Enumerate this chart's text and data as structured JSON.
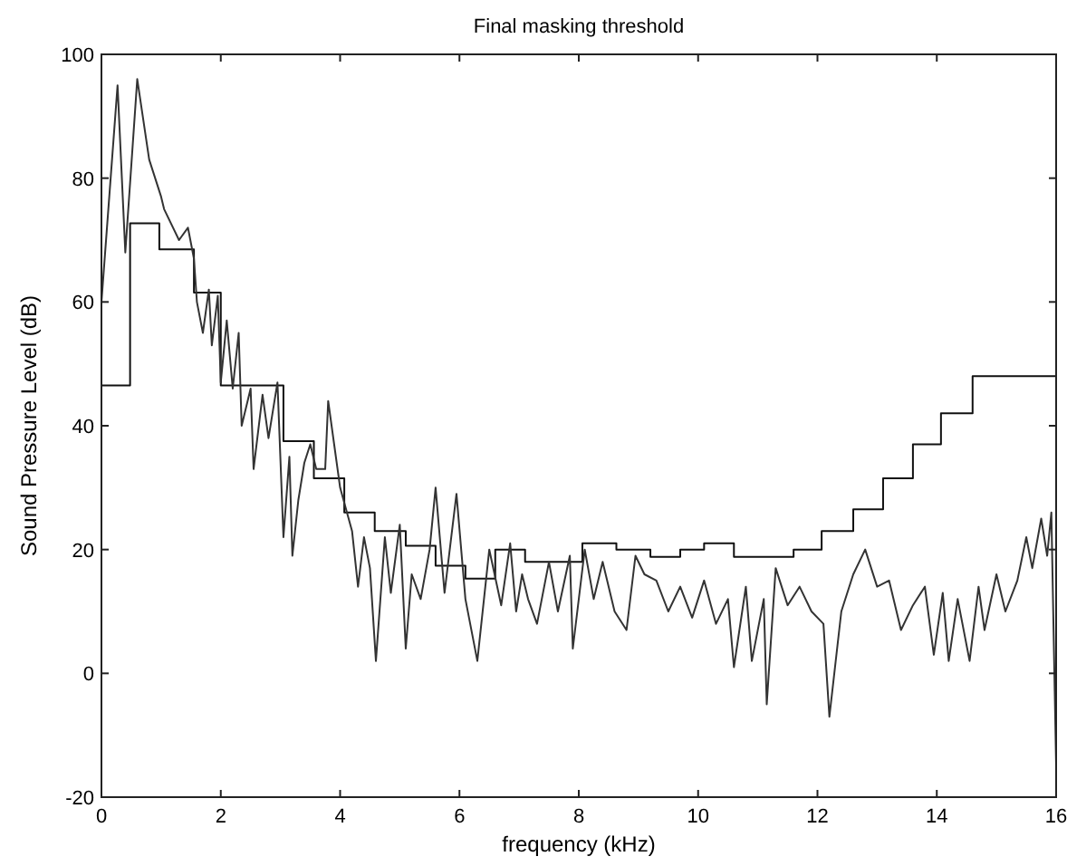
{
  "chart_data": {
    "type": "line",
    "title": "Final masking threshold",
    "xlabel": "frequency (kHz)",
    "ylabel": "Sound Pressure Level (dB)",
    "xlim": [
      0,
      16
    ],
    "ylim": [
      -20,
      100
    ],
    "xticks": [
      0,
      2,
      4,
      6,
      8,
      10,
      12,
      14,
      16
    ],
    "yticks": [
      -20,
      0,
      20,
      40,
      60,
      80,
      100
    ],
    "grid": false,
    "series": [
      {
        "type": "step",
        "color": "#111111",
        "x": [
          0,
          0.48,
          0.97,
          1.55,
          2.0,
          3.05,
          3.56,
          4.07,
          4.58,
          5.1,
          5.6,
          6.1,
          6.6,
          7.1,
          8.06,
          8.63,
          9.2,
          9.7,
          10.1,
          10.6,
          11.6,
          12.07,
          12.6,
          13.1,
          13.6,
          14.07,
          14.6,
          16
        ],
        "values": [
          46.5,
          72.7,
          68.5,
          61.5,
          46.5,
          37.5,
          31.5,
          26,
          23,
          20.6,
          17.4,
          15.3,
          20,
          18,
          21,
          20,
          18.8,
          20,
          21,
          18.8,
          20,
          23,
          26.5,
          31.5,
          37,
          42,
          48,
          48
        ]
      },
      {
        "type": "line",
        "color": "#333333",
        "x": [
          0,
          0.27,
          0.4,
          0.6,
          0.8,
          1.0,
          1.05,
          1.3,
          1.45,
          1.55,
          1.6,
          1.7,
          1.8,
          1.85,
          1.95,
          2.0,
          2.1,
          2.2,
          2.3,
          2.35,
          2.5,
          2.55,
          2.7,
          2.8,
          2.95,
          3.05,
          3.15,
          3.2,
          3.3,
          3.4,
          3.5,
          3.6,
          3.75,
          3.8,
          3.9,
          4.0,
          4.2,
          4.3,
          4.4,
          4.5,
          4.6,
          4.75,
          4.85,
          5.0,
          5.1,
          5.2,
          5.35,
          5.5,
          5.6,
          5.75,
          5.95,
          6.1,
          6.3,
          6.5,
          6.7,
          6.85,
          6.95,
          7.05,
          7.15,
          7.3,
          7.5,
          7.65,
          7.85,
          7.9,
          8.1,
          8.25,
          8.4,
          8.6,
          8.8,
          8.95,
          9.1,
          9.3,
          9.5,
          9.7,
          9.9,
          10.1,
          10.3,
          10.5,
          10.6,
          10.8,
          10.9,
          11.1,
          11.15,
          11.3,
          11.5,
          11.7,
          11.9,
          12.1,
          12.2,
          12.4,
          12.6,
          12.8,
          13.0,
          13.2,
          13.4,
          13.6,
          13.8,
          13.95,
          14.1,
          14.2,
          14.35,
          14.55,
          14.7,
          14.8,
          15.0,
          15.15,
          15.35,
          15.5,
          15.6,
          15.75,
          15.85,
          15.92,
          16.0
        ],
        "values": [
          60,
          95,
          68,
          96,
          83,
          77,
          75,
          70,
          72,
          67,
          60,
          55,
          62,
          53,
          61,
          47,
          57,
          46,
          55,
          40,
          46,
          33,
          45,
          38,
          47,
          22,
          35,
          19,
          28,
          34,
          37,
          33,
          33,
          44,
          37,
          30,
          23,
          14,
          22,
          17,
          2,
          22,
          13,
          24,
          4,
          16,
          12,
          20,
          30,
          13,
          29,
          12,
          2,
          20,
          11,
          21,
          10,
          16,
          12,
          8,
          18,
          10,
          19,
          4,
          20,
          12,
          18,
          10,
          7,
          19,
          16,
          15,
          10,
          14,
          9,
          15,
          8,
          12,
          1,
          14,
          2,
          12,
          -5,
          17,
          11,
          14,
          10,
          8,
          -7,
          10,
          16,
          20,
          14,
          15,
          7,
          11,
          14,
          3,
          13,
          2,
          12,
          2,
          14,
          7,
          16,
          10,
          15,
          22,
          17,
          25,
          19,
          26,
          -15
        ]
      }
    ]
  }
}
